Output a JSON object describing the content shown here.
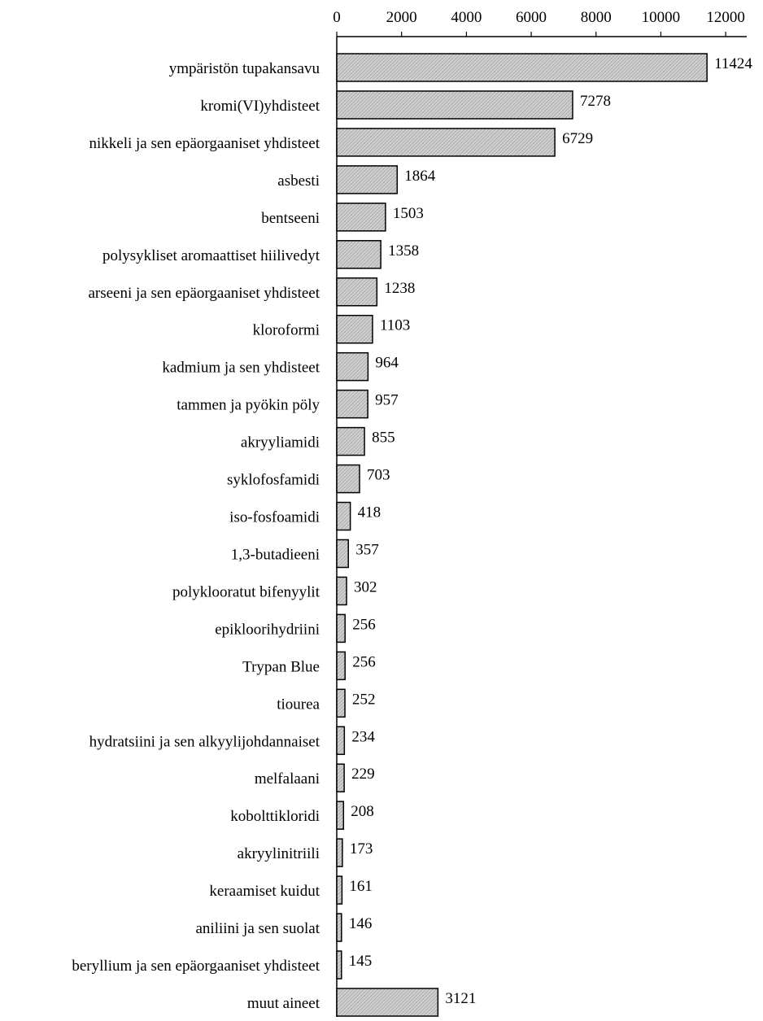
{
  "chart_data": {
    "type": "bar",
    "orientation": "horizontal",
    "title": "",
    "xlabel": "",
    "ylabel": "",
    "xlim": [
      0,
      12650
    ],
    "x_ticks": [
      "0",
      "2000",
      "4000",
      "6000",
      "8000",
      "10000",
      "12000"
    ],
    "x_tick_values": [
      0,
      2000,
      4000,
      6000,
      8000,
      10000,
      12000
    ],
    "x_axis_position": "top",
    "grid": false,
    "legend": "none",
    "bar_fill": "#c8c8c8",
    "bar_stroke": "#000000",
    "categories": [
      "ympäristön tupakansavu",
      "kromi(VI)yhdisteet",
      "nikkeli ja sen epäorgaaniset yhdisteet",
      "asbesti",
      "bentseeni",
      "polysykliset aromaattiset hiilivedyt",
      "arseeni ja sen epäorgaaniset yhdisteet",
      "kloroformi",
      "kadmium ja sen yhdisteet",
      "tammen ja pyökin pöly",
      "akryyliamidi",
      "syklofosfamidi",
      "iso-fosfoamidi",
      "1,3-butadieeni",
      "polyklooratut bifenyylit",
      "epikloorihydriini",
      "Trypan Blue",
      "tiourea",
      "hydratsiini ja sen alkyylijohdannaiset",
      "melfalaani",
      "kobolttikloridi",
      "akryylinitriili",
      "keraamiset kuidut",
      "aniliini ja sen suolat",
      "beryllium ja sen epäorgaaniset yhdisteet",
      "muut aineet"
    ],
    "values": [
      11424,
      7278,
      6729,
      1864,
      1503,
      1358,
      1238,
      1103,
      964,
      957,
      855,
      703,
      418,
      357,
      302,
      256,
      256,
      252,
      234,
      229,
      208,
      173,
      161,
      146,
      145,
      3121
    ],
    "data_labels": [
      "11424",
      "7278",
      "6729",
      "1864",
      "1503",
      "1358",
      "1238",
      "1103",
      "964",
      "957",
      "855",
      "703",
      "418",
      "357",
      "302",
      "256",
      "256",
      "252",
      "234",
      "229",
      "208",
      "173",
      "161",
      "146",
      "145",
      "3121"
    ]
  }
}
